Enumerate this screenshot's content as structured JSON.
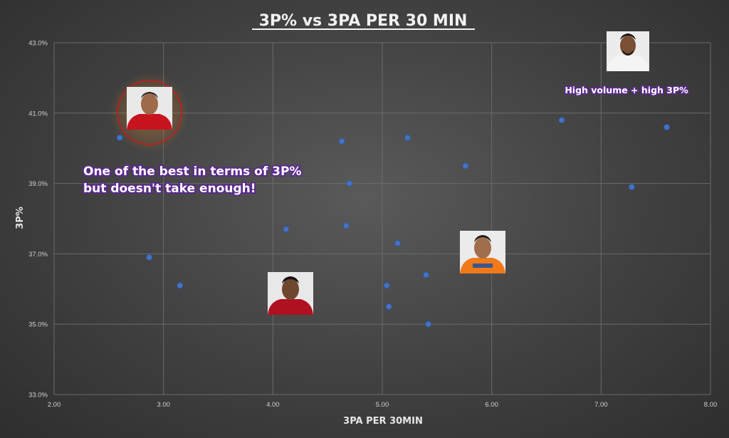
{
  "chart_data": {
    "type": "scatter",
    "title": "3P% vs 3PA PER 30 MIN",
    "xlabel": "3PA PER 30MIN",
    "ylabel": "3P%",
    "xlim": [
      2.0,
      8.0
    ],
    "ylim": [
      33.0,
      43.0
    ],
    "x_ticks": [
      "2.00",
      "3.00",
      "4.00",
      "5.00",
      "6.00",
      "7.00",
      "8.00"
    ],
    "y_ticks": [
      "33.0%",
      "35.0%",
      "37.0%",
      "39.0%",
      "41.0%",
      "43.0%"
    ],
    "grid": true,
    "series": [
      {
        "marker_color": "#4472c4",
        "points": [
          {
            "x": 2.6,
            "y": 40.3
          },
          {
            "x": 2.87,
            "y": 36.9
          },
          {
            "x": 3.15,
            "y": 36.1
          },
          {
            "x": 4.12,
            "y": 37.7
          },
          {
            "x": 4.63,
            "y": 40.2
          },
          {
            "x": 4.67,
            "y": 37.8
          },
          {
            "x": 4.7,
            "y": 39.0
          },
          {
            "x": 5.04,
            "y": 36.1
          },
          {
            "x": 5.06,
            "y": 35.5
          },
          {
            "x": 5.14,
            "y": 37.3
          },
          {
            "x": 5.23,
            "y": 40.3
          },
          {
            "x": 5.4,
            "y": 36.4
          },
          {
            "x": 5.42,
            "y": 35.0
          },
          {
            "x": 5.76,
            "y": 39.5
          },
          {
            "x": 6.64,
            "y": 40.8
          },
          {
            "x": 7.28,
            "y": 38.9
          },
          {
            "x": 7.6,
            "y": 40.6
          }
        ]
      }
    ],
    "annotations": [
      {
        "lines": [
          "One of the best in terms of 3P%",
          "but doesn't take enough!"
        ]
      },
      {
        "lines": [
          "High volume + high 3P%"
        ]
      }
    ],
    "player_photos": [
      {
        "jersey_color": "#c8141e",
        "highlighted": true
      },
      {
        "jersey_color": "#f4f4f4",
        "highlighted": false
      },
      {
        "jersey_color": "#f07a1a",
        "highlighted": false
      },
      {
        "jersey_color": "#b01020",
        "highlighted": false
      }
    ]
  }
}
